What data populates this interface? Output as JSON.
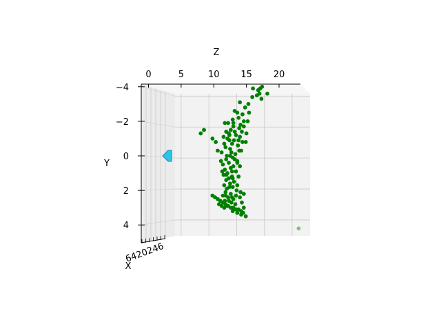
{
  "chart_data": {
    "type": "scatter",
    "projection": "3d",
    "title": "",
    "zlabel": "Z",
    "ylabel": "Y",
    "xlabel": "X",
    "z_ticks": [
      "0",
      "5",
      "10",
      "15",
      "20"
    ],
    "y_ticks": [
      "−4",
      "−2",
      "0",
      "2",
      "4"
    ],
    "x_ticks_text": "6420246",
    "zlim": [
      -1.5,
      23.5
    ],
    "ylim": [
      -4.5,
      4.8
    ],
    "grid": true,
    "series_color": "#008000",
    "camera_marker": {
      "color": "#29c5e6",
      "z": 0.8,
      "y": 0
    },
    "points": [
      [
        17.1,
        -3.9
      ],
      [
        17.4,
        -4.0
      ],
      [
        16.8,
        -3.8
      ],
      [
        17.0,
        -3.6
      ],
      [
        16.6,
        -3.5
      ],
      [
        17.3,
        -3.3
      ],
      [
        18.2,
        -3.6
      ],
      [
        16.0,
        -3.9
      ],
      [
        15.9,
        -3.4
      ],
      [
        15.3,
        -3.0
      ],
      [
        14.0,
        -3.1
      ],
      [
        13.2,
        -2.6
      ],
      [
        14.4,
        -2.4
      ],
      [
        14.6,
        -2.0
      ],
      [
        13.8,
        -2.2
      ],
      [
        12.9,
        -2.1
      ],
      [
        14.1,
        -1.8
      ],
      [
        13.0,
        -1.7
      ],
      [
        12.6,
        -1.5
      ],
      [
        13.9,
        -1.6
      ],
      [
        12.3,
        -1.3
      ],
      [
        14.3,
        -1.4
      ],
      [
        13.4,
        -1.2
      ],
      [
        12.1,
        -1.0
      ],
      [
        14.0,
        -1.1
      ],
      [
        13.1,
        -0.9
      ],
      [
        11.5,
        -1.1
      ],
      [
        9.8,
        -1.0
      ],
      [
        10.3,
        -0.8
      ],
      [
        12.8,
        -0.7
      ],
      [
        13.7,
        -0.6
      ],
      [
        11.8,
        -0.5
      ],
      [
        12.5,
        -0.4
      ],
      [
        14.2,
        -0.3
      ],
      [
        11.2,
        -0.2
      ],
      [
        13.3,
        -0.1
      ],
      [
        12.0,
        0.0
      ],
      [
        12.9,
        0.1
      ],
      [
        11.9,
        0.2
      ],
      [
        13.6,
        0.3
      ],
      [
        12.3,
        0.4
      ],
      [
        11.4,
        0.5
      ],
      [
        13.0,
        0.6
      ],
      [
        12.6,
        0.7
      ],
      [
        11.7,
        0.8
      ],
      [
        13.4,
        0.9
      ],
      [
        12.1,
        1.0
      ],
      [
        11.5,
        1.1
      ],
      [
        12.8,
        1.2
      ],
      [
        12.3,
        1.3
      ],
      [
        11.9,
        1.4
      ],
      [
        13.1,
        1.5
      ],
      [
        12.5,
        1.6
      ],
      [
        11.6,
        1.7
      ],
      [
        12.9,
        1.8
      ],
      [
        12.0,
        1.9
      ],
      [
        13.5,
        2.0
      ],
      [
        11.8,
        2.1
      ],
      [
        12.6,
        2.2
      ],
      [
        14.1,
        2.1
      ],
      [
        11.4,
        2.3
      ],
      [
        12.2,
        2.4
      ],
      [
        13.0,
        2.5
      ],
      [
        11.7,
        2.6
      ],
      [
        12.7,
        2.7
      ],
      [
        13.3,
        2.8
      ],
      [
        12.0,
        2.9
      ],
      [
        11.2,
        2.9
      ],
      [
        14.6,
        2.2
      ],
      [
        14.3,
        2.7
      ],
      [
        9.8,
        2.3
      ],
      [
        10.2,
        2.4
      ],
      [
        10.6,
        2.5
      ],
      [
        11.0,
        2.6
      ],
      [
        11.4,
        2.7
      ],
      [
        11.8,
        2.8
      ],
      [
        12.2,
        2.9
      ],
      [
        12.6,
        3.0
      ],
      [
        13.0,
        3.0
      ],
      [
        13.4,
        3.1
      ],
      [
        13.8,
        3.1
      ],
      [
        14.2,
        3.2
      ],
      [
        14.5,
        3.3
      ],
      [
        14.9,
        3.5
      ],
      [
        14.2,
        3.4
      ],
      [
        13.6,
        3.3
      ],
      [
        12.9,
        3.2
      ],
      [
        11.6,
        3.0
      ],
      [
        10.8,
        2.8
      ],
      [
        14.6,
        3.0
      ],
      [
        8.0,
        -1.3
      ],
      [
        8.5,
        -1.5
      ],
      [
        11.7,
        -1.9
      ],
      [
        15.2,
        -2.0
      ],
      [
        15.0,
        -1.3
      ],
      [
        14.9,
        -0.8
      ],
      [
        10.6,
        -0.3
      ],
      [
        11.9,
        -1.4
      ],
      [
        12.2,
        -1.9
      ],
      [
        14.6,
        -1.7
      ],
      [
        14.4,
        -0.8
      ],
      [
        13.9,
        -0.3
      ],
      [
        13.2,
        0.2
      ],
      [
        14.0,
        0.6
      ],
      [
        13.8,
        1.2
      ],
      [
        13.6,
        1.7
      ],
      [
        14.0,
        2.4
      ],
      [
        11.3,
        0.9
      ],
      [
        11.1,
        0.3
      ],
      [
        11.6,
        -0.7
      ],
      [
        12.4,
        -1.2
      ],
      [
        13.0,
        -1.9
      ],
      [
        13.6,
        -2.5
      ],
      [
        14.8,
        -2.8
      ],
      [
        15.4,
        -2.5
      ],
      [
        11.8,
        2.3
      ],
      [
        12.4,
        1.8
      ],
      [
        12.8,
        0.9
      ],
      [
        12.5,
        0.0
      ],
      [
        12.4,
        -0.9
      ],
      [
        13.2,
        -1.4
      ],
      [
        13.8,
        -0.9
      ],
      [
        12.8,
        2.4
      ],
      [
        13.4,
        2.3
      ],
      [
        12.3,
        2.6
      ],
      [
        11.9,
        1.1
      ],
      [
        12.9,
        1.3
      ],
      [
        13.6,
        0.4
      ],
      [
        12.7,
        -0.2
      ]
    ],
    "faint_points": [
      [
        8.5,
        -1.5
      ],
      [
        8.0,
        -1.3
      ],
      [
        10.3,
        -0.8
      ],
      [
        23.0,
        4.2
      ]
    ]
  }
}
